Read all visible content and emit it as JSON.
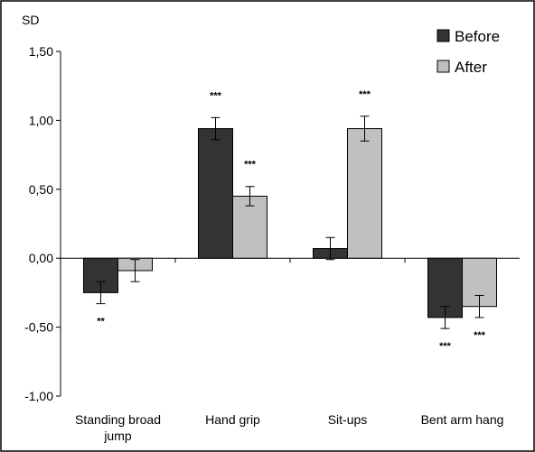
{
  "chart_data": {
    "type": "bar",
    "ylabel": "SD",
    "ylim": [
      -1.0,
      1.5
    ],
    "yticks": [
      1.5,
      1.0,
      0.5,
      0.0,
      -0.5,
      -1.0
    ],
    "ytick_labels": [
      "1,50",
      "1,00",
      "0,50",
      "0,00",
      "-0,50",
      "-1,00"
    ],
    "categories": [
      [
        "Standing broad",
        "jump"
      ],
      [
        "Hand grip"
      ],
      [
        "Sit-ups"
      ],
      [
        "Bent arm hang"
      ]
    ],
    "series": [
      {
        "name": "Before",
        "color": "#333333",
        "values": [
          -0.25,
          0.94,
          0.07,
          -0.43
        ],
        "errors": [
          0.08,
          0.08,
          0.08,
          0.08
        ],
        "significance": [
          "**",
          "***",
          "",
          "***"
        ]
      },
      {
        "name": "After",
        "color": "#c0c0c0",
        "values": [
          -0.09,
          0.45,
          0.94,
          -0.35
        ],
        "errors": [
          0.08,
          0.07,
          0.09,
          0.08
        ],
        "significance": [
          "",
          "***",
          "***",
          "***"
        ]
      }
    ],
    "legend_position": "top-right",
    "grid": false
  }
}
